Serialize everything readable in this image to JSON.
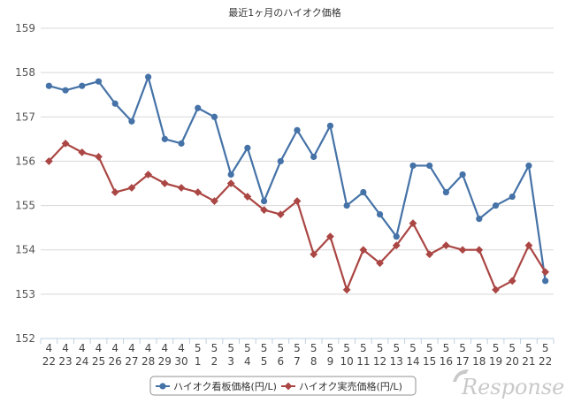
{
  "chart_data": {
    "type": "line",
    "title": "最近1ヶ月のハイオク価格",
    "ylim": [
      152,
      159
    ],
    "yticks": [
      152,
      153,
      154,
      155,
      156,
      157,
      158,
      159
    ],
    "grid": true,
    "legend_position": "bottom",
    "x": [
      {
        "month": "4",
        "day": "22"
      },
      {
        "month": "4",
        "day": "23"
      },
      {
        "month": "4",
        "day": "24"
      },
      {
        "month": "4",
        "day": "25"
      },
      {
        "month": "4",
        "day": "26"
      },
      {
        "month": "4",
        "day": "27"
      },
      {
        "month": "4",
        "day": "28"
      },
      {
        "month": "4",
        "day": "29"
      },
      {
        "month": "4",
        "day": "30"
      },
      {
        "month": "5",
        "day": "1"
      },
      {
        "month": "5",
        "day": "2"
      },
      {
        "month": "5",
        "day": "3"
      },
      {
        "month": "5",
        "day": "4"
      },
      {
        "month": "5",
        "day": "5"
      },
      {
        "month": "5",
        "day": "6"
      },
      {
        "month": "5",
        "day": "7"
      },
      {
        "month": "5",
        "day": "8"
      },
      {
        "month": "5",
        "day": "9"
      },
      {
        "month": "5",
        "day": "10"
      },
      {
        "month": "5",
        "day": "11"
      },
      {
        "month": "5",
        "day": "12"
      },
      {
        "month": "5",
        "day": "13"
      },
      {
        "month": "5",
        "day": "14"
      },
      {
        "month": "5",
        "day": "15"
      },
      {
        "month": "5",
        "day": "16"
      },
      {
        "month": "5",
        "day": "17"
      },
      {
        "month": "5",
        "day": "18"
      },
      {
        "month": "5",
        "day": "19"
      },
      {
        "month": "5",
        "day": "20"
      },
      {
        "month": "5",
        "day": "21"
      },
      {
        "month": "5",
        "day": "22"
      }
    ],
    "series": [
      {
        "name": "ハイオク看板価格(円/L)",
        "color": "#4572a7",
        "marker": "circle",
        "values": [
          157.7,
          157.6,
          157.7,
          157.8,
          157.3,
          156.9,
          157.9,
          156.5,
          156.4,
          157.2,
          157.0,
          155.7,
          156.3,
          155.1,
          156.0,
          156.7,
          156.1,
          156.8,
          155.0,
          155.3,
          154.8,
          154.3,
          155.9,
          155.9,
          155.3,
          155.7,
          154.7,
          155.0,
          155.2,
          155.9,
          153.3
        ]
      },
      {
        "name": "ハイオク実売価格(円/L)",
        "color": "#aa4643",
        "marker": "diamond",
        "values": [
          156.0,
          156.4,
          156.2,
          156.1,
          155.3,
          155.4,
          155.7,
          155.5,
          155.4,
          155.3,
          155.1,
          155.5,
          155.2,
          154.9,
          154.8,
          155.1,
          153.9,
          154.3,
          153.1,
          154.0,
          153.7,
          154.1,
          154.6,
          153.9,
          154.1,
          154.0,
          154.0,
          153.1,
          153.3,
          154.1,
          153.5
        ]
      }
    ],
    "colors": {
      "grid": "#d8d8d8",
      "axis": "#c0d0e0",
      "legend_border": "#909090"
    }
  },
  "watermark": {
    "text": "Response."
  }
}
